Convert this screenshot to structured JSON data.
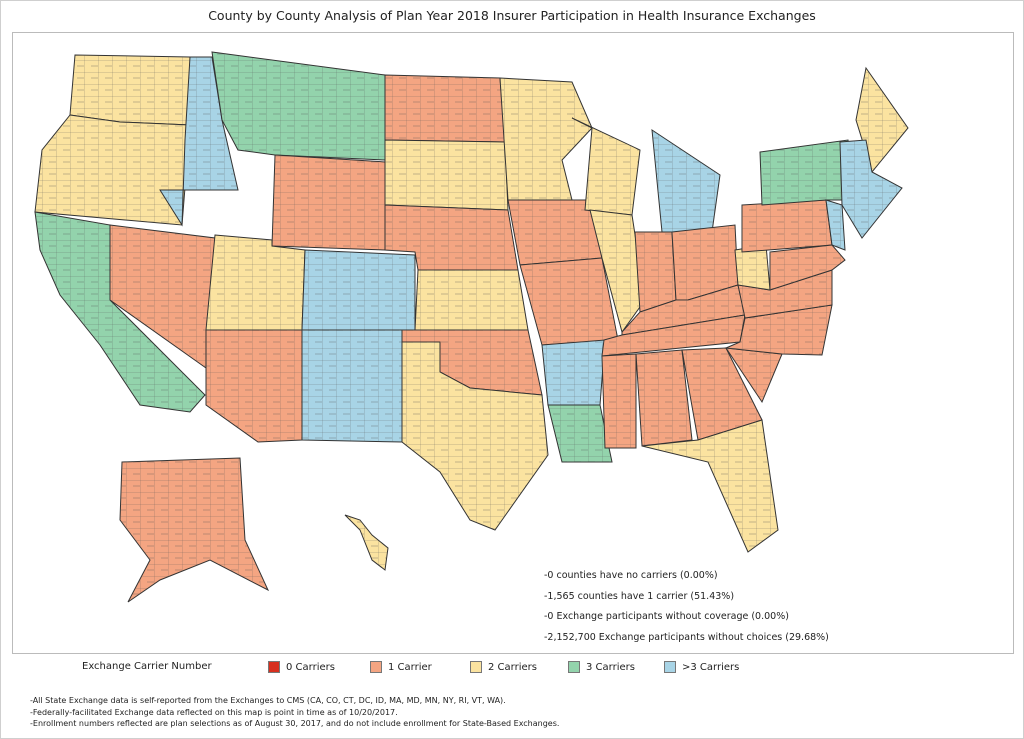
{
  "title": "County by County Analysis of Plan Year 2018 Insurer Participation in Health Insurance Exchanges",
  "stats": [
    "-0 counties have no carriers (0.00%)",
    "-1,565 counties have 1 carrier (51.43%)",
    "-0 Exchange participants without coverage (0.00%)",
    "-2,152,700 Exchange participants without choices (29.68%)"
  ],
  "legend": {
    "label": "Exchange Carrier Number",
    "items": [
      {
        "label": "0 Carriers",
        "color": "#d7301f"
      },
      {
        "label": "1 Carrier",
        "color": "#f4a582"
      },
      {
        "label": "2 Carriers",
        "color": "#fbe3a0"
      },
      {
        "label": "3 Carriers",
        "color": "#93d3ac"
      },
      {
        "label": ">3 Carriers",
        "color": "#a8d4e6"
      }
    ]
  },
  "notes": [
    "-All State Exchange data is self-reported from the Exchanges to CMS (CA, CO, CT, DC, ID, MA, MD, MN, NY, RI, VT, WA).",
    "-Federally-facilitated Exchange data reflected on this map is point in time as of 10/20/2017.",
    "-Enrollment numbers reflected are plan selections as of August 30, 2017, and do not include enrollment for State-Based Exchanges."
  ],
  "states": [
    {
      "id": "WA",
      "c": 2
    },
    {
      "id": "OR",
      "c": 2
    },
    {
      "id": "CA",
      "c": 3
    },
    {
      "id": "NV",
      "c": 1
    },
    {
      "id": "ID",
      "c": 4
    },
    {
      "id": "MT",
      "c": 3
    },
    {
      "id": "WY",
      "c": 1
    },
    {
      "id": "UT",
      "c": 2
    },
    {
      "id": "CO",
      "c": 4
    },
    {
      "id": "AZ",
      "c": 1
    },
    {
      "id": "NM",
      "c": 4
    },
    {
      "id": "ND",
      "c": 1
    },
    {
      "id": "SD",
      "c": 2
    },
    {
      "id": "NE",
      "c": 1
    },
    {
      "id": "KS",
      "c": 2
    },
    {
      "id": "OK",
      "c": 1
    },
    {
      "id": "TX",
      "c": 2
    },
    {
      "id": "MN",
      "c": 2
    },
    {
      "id": "IA",
      "c": 1
    },
    {
      "id": "MO",
      "c": 1
    },
    {
      "id": "AR",
      "c": 4
    },
    {
      "id": "LA",
      "c": 3
    },
    {
      "id": "WI",
      "c": 2
    },
    {
      "id": "IL",
      "c": 2
    },
    {
      "id": "MI",
      "c": 4
    },
    {
      "id": "IN",
      "c": 1
    },
    {
      "id": "OH",
      "c": 1
    },
    {
      "id": "KY",
      "c": 1
    },
    {
      "id": "TN",
      "c": 1
    },
    {
      "id": "MS",
      "c": 1
    },
    {
      "id": "AL",
      "c": 1
    },
    {
      "id": "GA",
      "c": 1
    },
    {
      "id": "FL",
      "c": 2
    },
    {
      "id": "SC",
      "c": 1
    },
    {
      "id": "NC",
      "c": 1
    },
    {
      "id": "VA",
      "c": 1
    },
    {
      "id": "WV",
      "c": 2
    },
    {
      "id": "PA",
      "c": 1
    },
    {
      "id": "NY",
      "c": 3
    },
    {
      "id": "ME",
      "c": 2
    },
    {
      "id": "NE-REGION",
      "c": 4
    },
    {
      "id": "NJ",
      "c": 4
    },
    {
      "id": "MD",
      "c": 1
    },
    {
      "id": "AK",
      "c": 1
    },
    {
      "id": "HI",
      "c": 2
    }
  ]
}
